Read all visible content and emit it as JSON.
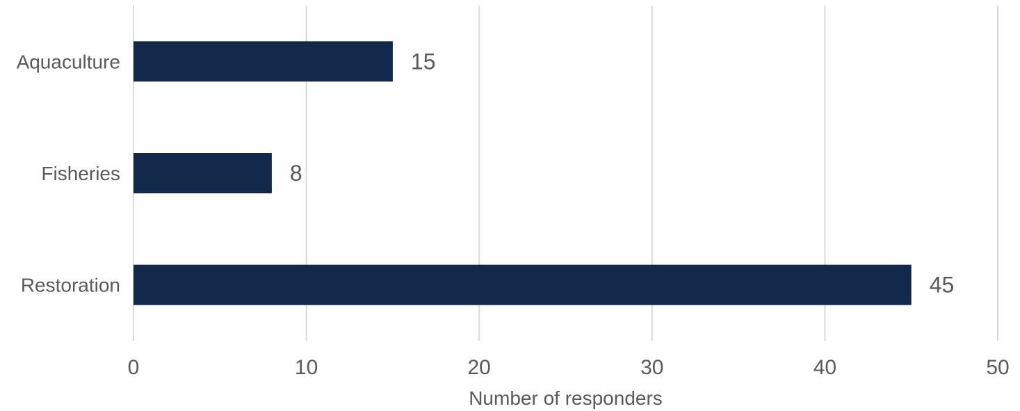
{
  "chart_data": {
    "type": "bar",
    "orientation": "horizontal",
    "categories": [
      "Aquaculture",
      "Fisheries",
      "Restoration"
    ],
    "values": [
      15,
      8,
      45
    ],
    "xlabel": "Number of responders",
    "ylabel": "",
    "xlim": [
      0,
      50
    ],
    "xticks": [
      0,
      10,
      20,
      30,
      40,
      50
    ],
    "grid": "vertical",
    "data_labels": true,
    "bar_color": "#13294b"
  }
}
